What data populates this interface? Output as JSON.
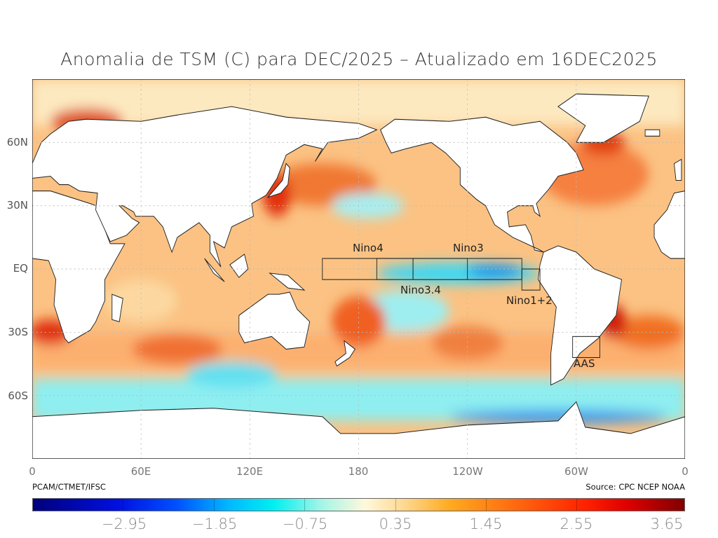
{
  "title": "Anomalia de TSM (C) para DEC/2025 – Atualizado em 16DEC2025",
  "lat_labels": [
    "60N",
    "30N",
    "EQ",
    "30S",
    "60S"
  ],
  "lon_labels": [
    "0",
    "60E",
    "120E",
    "180",
    "120W",
    "60W",
    "0"
  ],
  "credit_left": "PCAM/CTMET/IFSC",
  "credit_right": "Source: CPC NCEP NOAA",
  "regions": {
    "nino4": "Nino4",
    "nino34": "Nino3.4",
    "nino3": "Nino3",
    "nino12": "Nino1+2",
    "aas": "AAS"
  },
  "colorbar": {
    "ticks": [
      "−2.95",
      "−1.85",
      "−0.75",
      "0.35",
      "1.45",
      "2.55",
      "3.65"
    ]
  }
}
